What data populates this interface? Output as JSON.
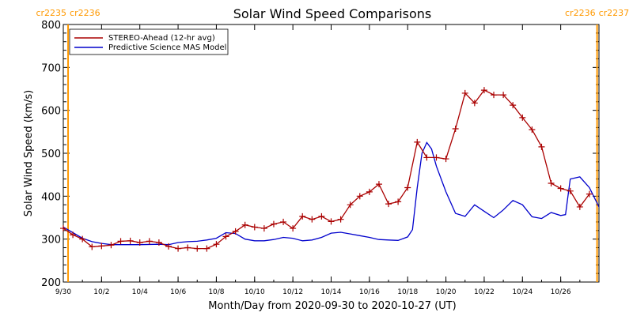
{
  "chart_data": {
    "type": "line",
    "title": "Solar Wind Speed Comparisons",
    "xlabel": "Month/Day from 2020-09-30 to 2020-10-27 (UT)",
    "ylabel": "Solar Wind Speed (km/s)",
    "xlim": [
      "2020-09-30",
      "2020-10-28"
    ],
    "ylim": [
      200,
      800
    ],
    "y_ticks": [
      200,
      300,
      400,
      500,
      600,
      700,
      800
    ],
    "x_ticks": [
      {
        "date": "2020-09-30",
        "label": "9/30"
      },
      {
        "date": "2020-10-02",
        "label": "10/2"
      },
      {
        "date": "2020-10-04",
        "label": "10/4"
      },
      {
        "date": "2020-10-06",
        "label": "10/6"
      },
      {
        "date": "2020-10-08",
        "label": "10/8"
      },
      {
        "date": "2020-10-10",
        "label": "10/10"
      },
      {
        "date": "2020-10-12",
        "label": "10/12"
      },
      {
        "date": "2020-10-14",
        "label": "10/14"
      },
      {
        "date": "2020-10-16",
        "label": "10/16"
      },
      {
        "date": "2020-10-18",
        "label": "10/18"
      },
      {
        "date": "2020-10-20",
        "label": "10/20"
      },
      {
        "date": "2020-10-22",
        "label": "10/22"
      },
      {
        "date": "2020-10-24",
        "label": "10/24"
      },
      {
        "date": "2020-10-26",
        "label": "10/26"
      }
    ],
    "grid": false,
    "legend_position": "top-left",
    "carrington_markers": [
      {
        "date": "2020-09-30 06:00",
        "label_left": "cr2235",
        "label_right": "cr2236",
        "side": "left"
      },
      {
        "date": "2020-10-27 21:36",
        "label_left": "cr2236",
        "label_right": "cr2237",
        "side": "right"
      }
    ],
    "series": [
      {
        "name": "STEREO-Ahead (12-hr avg)",
        "color": "#aa0000",
        "marker": "plus",
        "points": [
          [
            "2020-09-30 00:00",
            325
          ],
          [
            "2020-09-30 12:00",
            310
          ],
          [
            "2020-10-01 00:00",
            300
          ],
          [
            "2020-10-01 12:00",
            282
          ],
          [
            "2020-10-02 00:00",
            284
          ],
          [
            "2020-10-02 12:00",
            286
          ],
          [
            "2020-10-03 00:00",
            295
          ],
          [
            "2020-10-03 12:00",
            296
          ],
          [
            "2020-10-04 00:00",
            292
          ],
          [
            "2020-10-04 12:00",
            295
          ],
          [
            "2020-10-05 00:00",
            292
          ],
          [
            "2020-10-05 12:00",
            283
          ],
          [
            "2020-10-06 00:00",
            278
          ],
          [
            "2020-10-06 12:00",
            280
          ],
          [
            "2020-10-07 00:00",
            278
          ],
          [
            "2020-10-07 12:00",
            278
          ],
          [
            "2020-10-08 00:00",
            288
          ],
          [
            "2020-10-08 12:00",
            306
          ],
          [
            "2020-10-09 00:00",
            318
          ],
          [
            "2020-10-09 12:00",
            333
          ],
          [
            "2020-10-10 00:00",
            328
          ],
          [
            "2020-10-10 12:00",
            325
          ],
          [
            "2020-10-11 00:00",
            335
          ],
          [
            "2020-10-11 12:00",
            340
          ],
          [
            "2020-10-12 00:00",
            325
          ],
          [
            "2020-10-12 12:00",
            353
          ],
          [
            "2020-10-13 00:00",
            346
          ],
          [
            "2020-10-13 12:00",
            353
          ],
          [
            "2020-10-14 00:00",
            341
          ],
          [
            "2020-10-14 12:00",
            346
          ],
          [
            "2020-10-15 00:00",
            380
          ],
          [
            "2020-10-15 12:00",
            400
          ],
          [
            "2020-10-16 00:00",
            410
          ],
          [
            "2020-10-16 12:00",
            428
          ],
          [
            "2020-10-17 00:00",
            382
          ],
          [
            "2020-10-17 12:00",
            387
          ],
          [
            "2020-10-18 00:00",
            420
          ],
          [
            "2020-10-18 12:00",
            526
          ],
          [
            "2020-10-19 00:00",
            490
          ],
          [
            "2020-10-19 12:00",
            490
          ],
          [
            "2020-10-20 00:00",
            487
          ],
          [
            "2020-10-20 12:00",
            557
          ],
          [
            "2020-10-21 00:00",
            640
          ],
          [
            "2020-10-21 12:00",
            617
          ],
          [
            "2020-10-22 00:00",
            647
          ],
          [
            "2020-10-22 12:00",
            636
          ],
          [
            "2020-10-23 00:00",
            636
          ],
          [
            "2020-10-23 12:00",
            612
          ],
          [
            "2020-10-24 00:00",
            583
          ],
          [
            "2020-10-24 12:00",
            555
          ],
          [
            "2020-10-25 00:00",
            515
          ],
          [
            "2020-10-25 12:00",
            430
          ],
          [
            "2020-10-26 00:00",
            418
          ],
          [
            "2020-10-26 12:00",
            412
          ],
          [
            "2020-10-27 00:00",
            375
          ],
          [
            "2020-10-27 12:00",
            405
          ]
        ]
      },
      {
        "name": "Predictive Science MAS Model",
        "color": "#0000cc",
        "marker": "none",
        "points": [
          [
            "2020-09-30 00:00",
            328
          ],
          [
            "2020-09-30 12:00",
            315
          ],
          [
            "2020-10-01 00:00",
            302
          ],
          [
            "2020-10-01 12:00",
            294
          ],
          [
            "2020-10-02 00:00",
            290
          ],
          [
            "2020-10-02 12:00",
            287
          ],
          [
            "2020-10-03 00:00",
            287
          ],
          [
            "2020-10-04 00:00",
            287
          ],
          [
            "2020-10-05 00:00",
            288
          ],
          [
            "2020-10-05 12:00",
            287
          ],
          [
            "2020-10-06 00:00",
            292
          ],
          [
            "2020-10-06 12:00",
            294
          ],
          [
            "2020-10-07 00:00",
            295
          ],
          [
            "2020-10-07 12:00",
            298
          ],
          [
            "2020-10-08 00:00",
            302
          ],
          [
            "2020-10-08 12:00",
            315
          ],
          [
            "2020-10-09 00:00",
            313
          ],
          [
            "2020-10-09 12:00",
            300
          ],
          [
            "2020-10-10 00:00",
            296
          ],
          [
            "2020-10-10 12:00",
            296
          ],
          [
            "2020-10-11 00:00",
            299
          ],
          [
            "2020-10-11 12:00",
            304
          ],
          [
            "2020-10-12 00:00",
            302
          ],
          [
            "2020-10-12 12:00",
            296
          ],
          [
            "2020-10-13 00:00",
            298
          ],
          [
            "2020-10-13 12:00",
            304
          ],
          [
            "2020-10-14 00:00",
            314
          ],
          [
            "2020-10-14 12:00",
            316
          ],
          [
            "2020-10-15 00:00",
            312
          ],
          [
            "2020-10-15 12:00",
            308
          ],
          [
            "2020-10-16 00:00",
            304
          ],
          [
            "2020-10-16 12:00",
            299
          ],
          [
            "2020-10-17 00:00",
            298
          ],
          [
            "2020-10-17 12:00",
            297
          ],
          [
            "2020-10-18 00:00",
            305
          ],
          [
            "2020-10-18 06:00",
            322
          ],
          [
            "2020-10-18 12:00",
            420
          ],
          [
            "2020-10-18 18:00",
            500
          ],
          [
            "2020-10-19 00:00",
            525
          ],
          [
            "2020-10-19 06:00",
            510
          ],
          [
            "2020-10-19 12:00",
            470
          ],
          [
            "2020-10-20 00:00",
            410
          ],
          [
            "2020-10-20 12:00",
            360
          ],
          [
            "2020-10-21 00:00",
            353
          ],
          [
            "2020-10-21 12:00",
            380
          ],
          [
            "2020-10-22 00:00",
            365
          ],
          [
            "2020-10-22 12:00",
            350
          ],
          [
            "2020-10-23 00:00",
            368
          ],
          [
            "2020-10-23 12:00",
            390
          ],
          [
            "2020-10-24 00:00",
            380
          ],
          [
            "2020-10-24 12:00",
            352
          ],
          [
            "2020-10-25 00:00",
            348
          ],
          [
            "2020-10-25 12:00",
            362
          ],
          [
            "2020-10-26 00:00",
            355
          ],
          [
            "2020-10-26 06:00",
            357
          ],
          [
            "2020-10-26 12:00",
            440
          ],
          [
            "2020-10-27 00:00",
            445
          ],
          [
            "2020-10-27 12:00",
            420
          ],
          [
            "2020-10-28 00:00",
            375
          ],
          [
            "2020-10-28 12:00",
            345
          ],
          [
            "2020-10-28 18:00",
            338
          ]
        ]
      }
    ]
  },
  "colors": {
    "carrington": "#ff9900",
    "axis": "#000000",
    "background": "#ffffff"
  }
}
